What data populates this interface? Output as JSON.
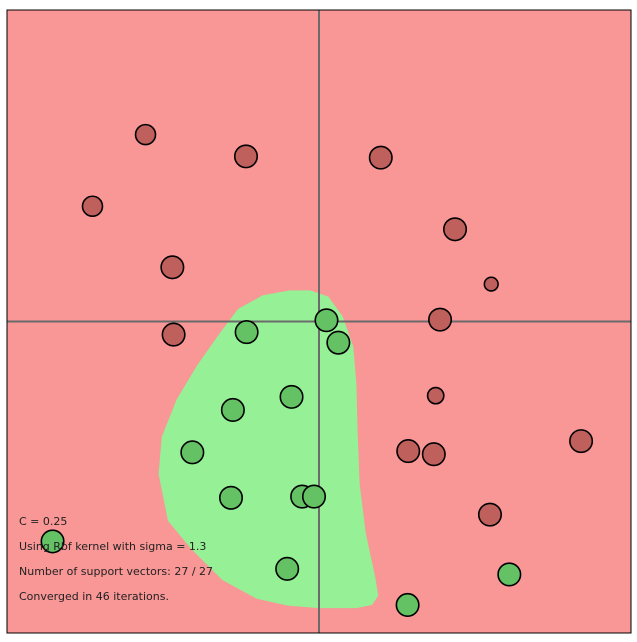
{
  "colors": {
    "background_negative": "#f99696",
    "background_positive": "#96f096",
    "point_negative": "#c0605c",
    "point_positive": "#64c264",
    "point_stroke": "#000000",
    "axis": "#6b6b6b",
    "frame": "#000000"
  },
  "info": {
    "c_line": "C = 0.25",
    "kernel_line": "Using Rbf kernel with sigma = 1.3",
    "support_vectors_line": "Number of support vectors: 27 / 27",
    "converged_line": "Converged in 46 iterations."
  },
  "chart_data": {
    "type": "scatter",
    "title": "",
    "xlabel": "",
    "ylabel": "",
    "xlim": [
      -5,
      5
    ],
    "ylim": [
      -5,
      5
    ],
    "axes": "crosshair at origin",
    "series": [
      {
        "name": "negative",
        "label": -1,
        "points": [
          {
            "x": -2.78,
            "y": 3.0,
            "r": 0.16
          },
          {
            "x": -1.17,
            "y": 2.65,
            "r": 0.18
          },
          {
            "x": 0.99,
            "y": 2.63,
            "r": 0.18
          },
          {
            "x": -3.63,
            "y": 1.85,
            "r": 0.16
          },
          {
            "x": 2.18,
            "y": 1.48,
            "r": 0.18
          },
          {
            "x": -2.35,
            "y": 0.87,
            "r": 0.18
          },
          {
            "x": 2.76,
            "y": 0.6,
            "r": 0.11
          },
          {
            "x": 1.94,
            "y": 0.03,
            "r": 0.18
          },
          {
            "x": -2.33,
            "y": -0.21,
            "r": 0.18
          },
          {
            "x": 1.87,
            "y": -1.19,
            "r": 0.13
          },
          {
            "x": 4.2,
            "y": -1.92,
            "r": 0.18
          },
          {
            "x": 1.43,
            "y": -2.08,
            "r": 0.18
          },
          {
            "x": 1.84,
            "y": -2.13,
            "r": 0.18
          },
          {
            "x": 2.74,
            "y": -3.1,
            "r": 0.18
          }
        ]
      },
      {
        "name": "positive",
        "label": 1,
        "points": [
          {
            "x": 0.12,
            "y": 0.02,
            "r": 0.18
          },
          {
            "x": -1.16,
            "y": -0.17,
            "r": 0.18
          },
          {
            "x": 0.31,
            "y": -0.34,
            "r": 0.18
          },
          {
            "x": -0.44,
            "y": -1.21,
            "r": 0.18
          },
          {
            "x": -1.38,
            "y": -1.42,
            "r": 0.18
          },
          {
            "x": -2.03,
            "y": -2.1,
            "r": 0.18
          },
          {
            "x": -1.41,
            "y": -2.83,
            "r": 0.18
          },
          {
            "x": -0.27,
            "y": -2.81,
            "r": 0.18
          },
          {
            "x": -0.08,
            "y": -2.81,
            "r": 0.18
          },
          {
            "x": -4.27,
            "y": -3.53,
            "r": 0.18
          },
          {
            "x": -0.51,
            "y": -3.97,
            "r": 0.18
          },
          {
            "x": 3.05,
            "y": -4.06,
            "r": 0.18
          },
          {
            "x": 1.42,
            "y": -4.55,
            "r": 0.18
          }
        ]
      }
    ],
    "decision_region_positive": [
      [
        -0.47,
        0.5
      ],
      [
        -0.14,
        0.5
      ],
      [
        0.15,
        0.4
      ],
      [
        0.38,
        0.08
      ],
      [
        0.55,
        -0.4
      ],
      [
        0.6,
        -1.0
      ],
      [
        0.62,
        -1.8
      ],
      [
        0.65,
        -2.6
      ],
      [
        0.75,
        -3.4
      ],
      [
        0.9,
        -4.1
      ],
      [
        0.95,
        -4.4
      ],
      [
        0.85,
        -4.55
      ],
      [
        0.6,
        -4.6
      ],
      [
        0.0,
        -4.6
      ],
      [
        -0.5,
        -4.56
      ],
      [
        -1.0,
        -4.45
      ],
      [
        -1.55,
        -4.15
      ],
      [
        -2.05,
        -3.65
      ],
      [
        -2.42,
        -3.2
      ],
      [
        -2.57,
        -2.45
      ],
      [
        -2.52,
        -1.85
      ],
      [
        -2.28,
        -1.25
      ],
      [
        -1.95,
        -0.7
      ],
      [
        -1.6,
        -0.2
      ],
      [
        -1.3,
        0.2
      ],
      [
        -0.9,
        0.42
      ]
    ]
  }
}
